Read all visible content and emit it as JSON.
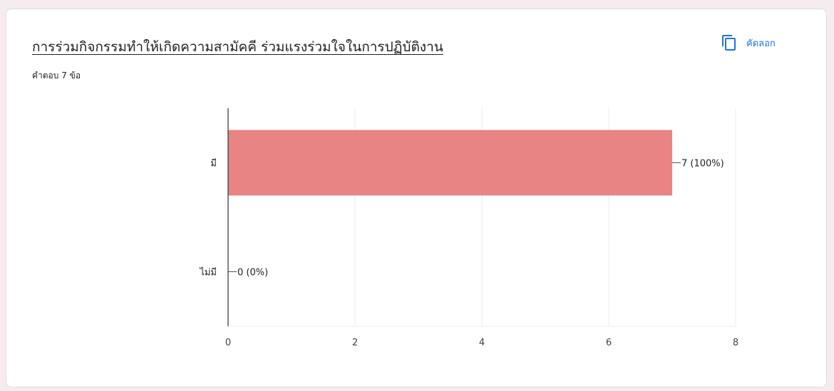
{
  "question": {
    "title": "การร่วมกิจกรรมทำให้เกิดความสามัคคี ร่วมแรงร่วมใจในการปฏิบัติงาน",
    "response_count": "คำตอบ 7 ข้อ"
  },
  "toolbar": {
    "copy_label": "คัดลอก",
    "copy_icon": "copy-icon"
  },
  "colors": {
    "bar": "#e88484",
    "axis": "#333333",
    "grid": "#ebebeb",
    "accent": "#1a73e8"
  },
  "chart_data": {
    "type": "bar",
    "orientation": "horizontal",
    "categories": [
      "มี",
      "ไม่มี"
    ],
    "values": [
      7,
      0
    ],
    "data_labels": [
      "7 (100%)",
      "0 (0%)"
    ],
    "xlim": [
      0,
      8
    ],
    "xticks": [
      0,
      2,
      4,
      6,
      8
    ],
    "grid": true,
    "title": "",
    "xlabel": "",
    "ylabel": ""
  }
}
